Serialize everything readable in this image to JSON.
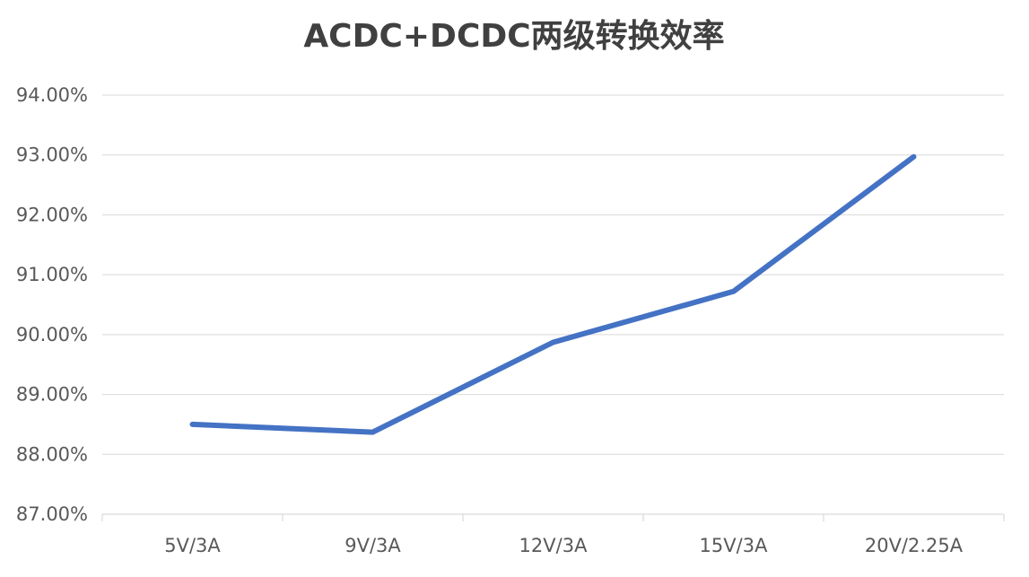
{
  "chart_data": {
    "type": "line",
    "title": "ACDC+DCDC两级转换效率",
    "xlabel": "",
    "ylabel": "",
    "categories": [
      "5V/3A",
      "9V/3A",
      "12V/3A",
      "15V/3A",
      "20V/2.25A"
    ],
    "series": [
      {
        "values": [
          88.5,
          88.37,
          89.87,
          90.72,
          92.97
        ],
        "color": "#4472c4"
      }
    ],
    "ylim": [
      87.0,
      94.0
    ],
    "y_step": 1.0,
    "y_tick_format": "percent_2dp",
    "y_tick_labels": [
      "87.00%",
      "88.00%",
      "89.00%",
      "90.00%",
      "91.00%",
      "92.00%",
      "93.00%",
      "94.00%"
    ],
    "grid": true,
    "legend": "none"
  }
}
